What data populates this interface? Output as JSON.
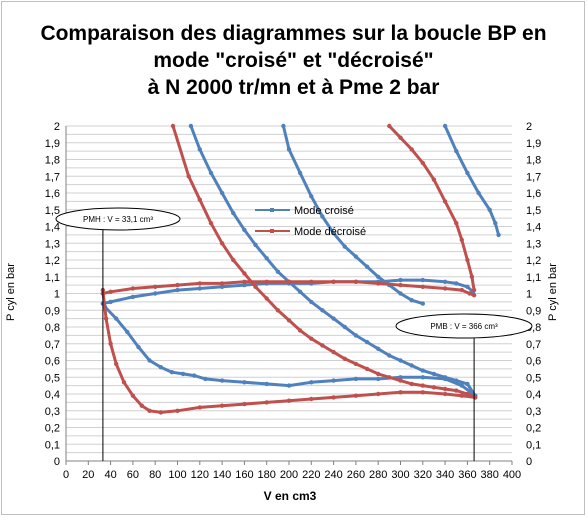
{
  "chart_data": {
    "type": "line",
    "title": "Comparaison des diagrammes sur la boucle BP en mode \"croisé\" et \"décroisé\" à N 2000 tr/mn et à Pme 2 bar",
    "title_lines": [
      "Comparaison des diagrammes sur la boucle BP en",
      "mode \"croisé\" et \"décroisé\"",
      "à N 2000 tr/mn et à Pme 2 bar"
    ],
    "xlabel": "V en cm3",
    "ylabel": "P cyl en bar",
    "ylabel_right": "P cyl en bar",
    "xlim": [
      0,
      400
    ],
    "ylim": [
      0,
      2
    ],
    "xticks": [
      0,
      20,
      40,
      60,
      80,
      100,
      120,
      140,
      160,
      180,
      200,
      220,
      240,
      260,
      280,
      300,
      320,
      340,
      360,
      380,
      400
    ],
    "yticks": [
      "0",
      "0,05",
      "0,1",
      "0,15",
      "0,2",
      "0,25",
      "0,3",
      "0,35",
      "0,4",
      "0,45",
      "0,5",
      "0,55",
      "0,6",
      "0,65",
      "0,7",
      "0,75",
      "0,8",
      "0,85",
      "0,9",
      "0,95",
      "1",
      "1,05",
      "1,1",
      "1,15",
      "1,2",
      "1,25",
      "1,3",
      "1,35",
      "1,4",
      "1,45",
      "1,5",
      "1,55",
      "1,6",
      "1,65",
      "1,7",
      "1,75",
      "1,8",
      "1,85",
      "1,9",
      "1,95",
      "2"
    ],
    "ytick_labels": [
      "0",
      "0,1",
      "0,2",
      "0,3",
      "0,4",
      "0,5",
      "0,6",
      "0,7",
      "0,8",
      "0,9",
      "1",
      "1,1",
      "1,2",
      "1,3",
      "1,4",
      "1,5",
      "1,6",
      "1,7",
      "1,8",
      "1,9",
      "2"
    ],
    "legend_position": "upper center",
    "series": [
      {
        "name": "Mode croisé",
        "color": "#4f81bd",
        "segments": [
          [
            [
              195,
              2.0
            ],
            [
              200,
              1.86
            ],
            [
              210,
              1.72
            ],
            [
              220,
              1.58
            ],
            [
              230,
              1.46
            ],
            [
              240,
              1.36
            ],
            [
              250,
              1.28
            ],
            [
              260,
              1.22
            ],
            [
              270,
              1.16
            ],
            [
              280,
              1.1
            ],
            [
              290,
              1.05
            ],
            [
              300,
              1.0
            ],
            [
              310,
              0.96
            ],
            [
              320,
              0.94
            ]
          ],
          [
            [
              340,
              2.0
            ],
            [
              350,
              1.85
            ],
            [
              360,
              1.72
            ],
            [
              370,
              1.6
            ],
            [
              380,
              1.5
            ],
            [
              385,
              1.42
            ],
            [
              388,
              1.35
            ]
          ],
          [
            [
              33,
              0.94
            ],
            [
              40,
              0.95
            ],
            [
              60,
              0.98
            ],
            [
              80,
              1.0
            ],
            [
              100,
              1.02
            ],
            [
              120,
              1.03
            ],
            [
              140,
              1.04
            ],
            [
              160,
              1.05
            ],
            [
              180,
              1.06
            ],
            [
              200,
              1.06
            ],
            [
              220,
              1.06
            ],
            [
              240,
              1.07
            ],
            [
              260,
              1.07
            ],
            [
              280,
              1.07
            ],
            [
              300,
              1.08
            ],
            [
              320,
              1.08
            ],
            [
              340,
              1.07
            ],
            [
              350,
              1.06
            ],
            [
              360,
              1.04
            ],
            [
              365,
              1.01
            ]
          ],
          [
            [
              112,
              2.0
            ],
            [
              120,
              1.86
            ],
            [
              130,
              1.72
            ],
            [
              140,
              1.6
            ],
            [
              150,
              1.48
            ],
            [
              160,
              1.38
            ],
            [
              170,
              1.29
            ],
            [
              180,
              1.21
            ],
            [
              190,
              1.13
            ],
            [
              200,
              1.07
            ],
            [
              210,
              1.01
            ],
            [
              220,
              0.95
            ],
            [
              230,
              0.9
            ],
            [
              240,
              0.85
            ],
            [
              250,
              0.8
            ],
            [
              260,
              0.75
            ],
            [
              270,
              0.71
            ],
            [
              280,
              0.67
            ],
            [
              290,
              0.63
            ],
            [
              300,
              0.6
            ],
            [
              310,
              0.57
            ],
            [
              320,
              0.54
            ],
            [
              330,
              0.52
            ],
            [
              340,
              0.5
            ],
            [
              350,
              0.48
            ],
            [
              360,
              0.46
            ],
            [
              367,
              0.39
            ]
          ],
          [
            [
              35,
              0.92
            ],
            [
              45,
              0.85
            ],
            [
              55,
              0.77
            ],
            [
              65,
              0.68
            ],
            [
              75,
              0.6
            ],
            [
              85,
              0.56
            ],
            [
              95,
              0.53
            ],
            [
              105,
              0.52
            ],
            [
              115,
              0.51
            ],
            [
              125,
              0.49
            ],
            [
              140,
              0.48
            ],
            [
              160,
              0.47
            ],
            [
              180,
              0.46
            ],
            [
              200,
              0.45
            ],
            [
              220,
              0.47
            ],
            [
              240,
              0.48
            ],
            [
              260,
              0.49
            ],
            [
              280,
              0.49
            ],
            [
              300,
              0.5
            ],
            [
              320,
              0.5
            ],
            [
              340,
              0.49
            ],
            [
              355,
              0.45
            ],
            [
              367,
              0.39
            ]
          ]
        ]
      },
      {
        "name": "Mode décroisé",
        "color": "#c0504d",
        "segments": [
          [
            [
              96,
              2.0
            ],
            [
              110,
              1.7
            ],
            [
              120,
              1.56
            ],
            [
              130,
              1.42
            ],
            [
              140,
              1.3
            ],
            [
              150,
              1.2
            ],
            [
              160,
              1.12
            ],
            [
              170,
              1.04
            ],
            [
              180,
              0.97
            ],
            [
              190,
              0.9
            ],
            [
              200,
              0.84
            ],
            [
              210,
              0.78
            ],
            [
              220,
              0.73
            ],
            [
              230,
              0.69
            ],
            [
              240,
              0.65
            ],
            [
              250,
              0.61
            ],
            [
              260,
              0.58
            ],
            [
              270,
              0.55
            ],
            [
              280,
              0.52
            ],
            [
              290,
              0.5
            ],
            [
              300,
              0.48
            ],
            [
              310,
              0.46
            ],
            [
              320,
              0.45
            ],
            [
              330,
              0.44
            ],
            [
              340,
              0.43
            ],
            [
              350,
              0.42
            ],
            [
              360,
              0.4
            ],
            [
              367,
              0.38
            ]
          ],
          [
            [
              290,
              2.0
            ],
            [
              300,
              1.93
            ],
            [
              310,
              1.86
            ],
            [
              320,
              1.78
            ],
            [
              330,
              1.68
            ],
            [
              340,
              1.55
            ],
            [
              350,
              1.42
            ],
            [
              355,
              1.32
            ],
            [
              360,
              1.2
            ],
            [
              364,
              1.1
            ],
            [
              366,
              1.02
            ]
          ],
          [
            [
              33,
              1.0
            ],
            [
              40,
              1.01
            ],
            [
              60,
              1.03
            ],
            [
              80,
              1.04
            ],
            [
              100,
              1.05
            ],
            [
              120,
              1.06
            ],
            [
              140,
              1.06
            ],
            [
              160,
              1.07
            ],
            [
              180,
              1.07
            ],
            [
              200,
              1.07
            ],
            [
              220,
              1.07
            ],
            [
              240,
              1.07
            ],
            [
              260,
              1.07
            ],
            [
              280,
              1.06
            ],
            [
              300,
              1.05
            ],
            [
              320,
              1.04
            ],
            [
              340,
              1.03
            ],
            [
              355,
              1.02
            ],
            [
              362,
              1.0
            ],
            [
              366,
              0.99
            ]
          ],
          [
            [
              33,
              1.02
            ],
            [
              36,
              0.85
            ],
            [
              40,
              0.7
            ],
            [
              45,
              0.58
            ],
            [
              52,
              0.47
            ],
            [
              60,
              0.39
            ],
            [
              68,
              0.33
            ],
            [
              75,
              0.3
            ],
            [
              85,
              0.29
            ],
            [
              100,
              0.3
            ],
            [
              120,
              0.32
            ],
            [
              140,
              0.33
            ],
            [
              160,
              0.34
            ],
            [
              180,
              0.35
            ],
            [
              200,
              0.36
            ],
            [
              220,
              0.37
            ],
            [
              240,
              0.38
            ],
            [
              260,
              0.39
            ],
            [
              280,
              0.4
            ],
            [
              300,
              0.41
            ],
            [
              320,
              0.41
            ],
            [
              340,
              0.4
            ],
            [
              355,
              0.39
            ],
            [
              367,
              0.38
            ]
          ]
        ]
      }
    ],
    "annotations": [
      {
        "text": "PMH : V = 33,1 cm³",
        "x_value": 33.1
      },
      {
        "text": "PMB : V =  366 cm³",
        "x_value": 366
      }
    ]
  }
}
